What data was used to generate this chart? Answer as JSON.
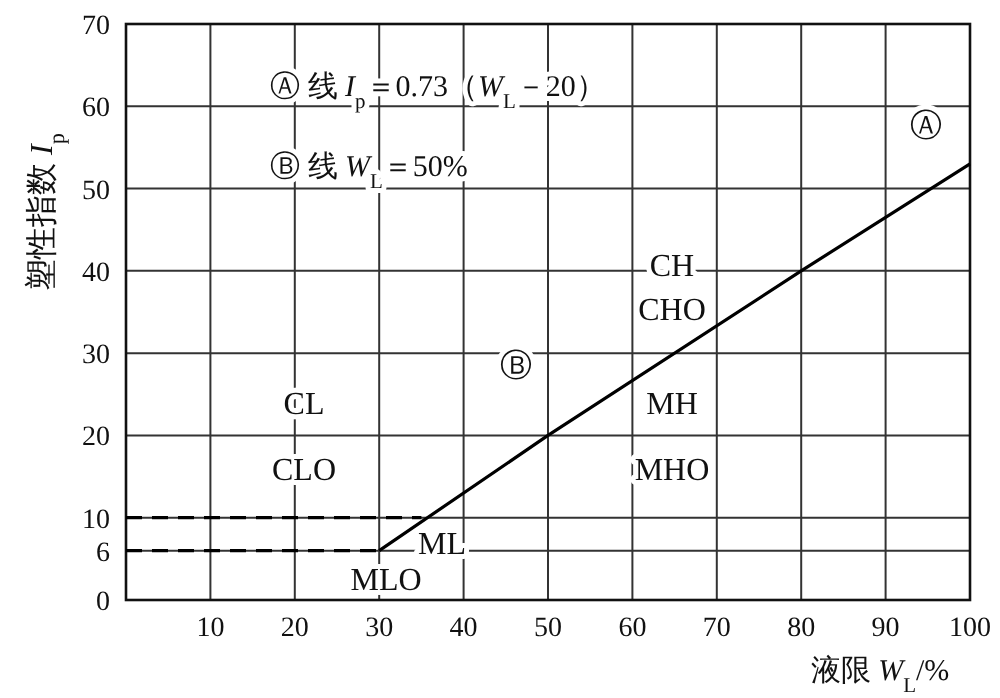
{
  "chart_data": {
    "type": "line",
    "xlabel": "液限 *W*$_{L}$/%",
    "ylabel": "塑性指数 *I*$_{p}$",
    "xlim": [
      0,
      100
    ],
    "ylim": [
      0,
      70
    ],
    "xticks": [
      10,
      20,
      30,
      40,
      50,
      60,
      70,
      80,
      90,
      100
    ],
    "yticks": [
      0,
      6,
      10,
      20,
      30,
      40,
      50,
      60,
      70
    ],
    "grid": true,
    "series": [
      {
        "color": "#000000",
        "line_style": "solid",
        "x": [
          30,
          50,
          80,
          100
        ],
        "values": [
          6,
          20,
          40,
          53
        ]
      },
      {
        "color": "#000000",
        "line_style": "dashed",
        "x": [
          0,
          35
        ],
        "values": [
          10,
          10
        ]
      },
      {
        "color": "#000000",
        "line_style": "dashed",
        "x": [
          0,
          30
        ],
        "values": [
          6,
          6
        ]
      }
    ],
    "annotations": [
      "Ⓐ 线 *I*$_{p}$＝0.73（*W*$_{L}$－20）",
      "Ⓑ 线 *W*$_{L}$＝50%",
      "Ⓐ",
      "Ⓑ",
      "CH",
      "CHO",
      "MH",
      "MHO",
      "CL",
      "CLO",
      "ML",
      "MLO"
    ]
  }
}
